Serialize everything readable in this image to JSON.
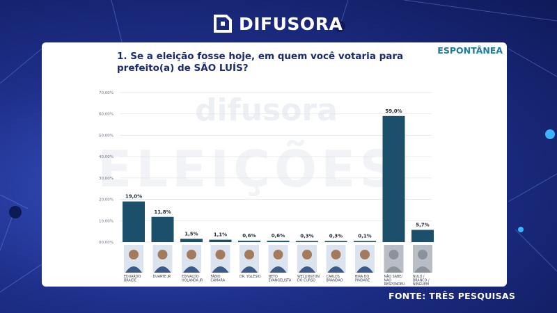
{
  "brand": {
    "logo_text": "DIFUSORA",
    "watermark": "difusora",
    "watermark_big": "ELEIÇÕES"
  },
  "header": {
    "title": "1. Se a eleição fosse hoje, em quem você votaria para prefeito(a) de SÃO LUÍS?",
    "tag": "ESPONTÂNEA"
  },
  "footer": {
    "source": "FONTE: TRÊS PESQUISAS"
  },
  "colors": {
    "bar": "#1b4f6a",
    "title": "#1a2a6c",
    "tag": "#1e7a9c"
  },
  "chart_data": {
    "type": "bar",
    "yticks": [
      "00,00%",
      "10,00%",
      "20,00%",
      "30,00%",
      "40,00%",
      "50,00%",
      "60,00%",
      "70,00%"
    ],
    "ylim": [
      0,
      70
    ],
    "categories": [
      "EDUARDO BRAIDE",
      "DUARTE JR",
      "EDIVALDO HOLANDA JR",
      "FÁBIO CÂMARA",
      "DR. YGLÉSIO",
      "NETO EVANGELISTA",
      "WELLINGTON DO CURSO",
      "CARLOS BRANDÃO",
      "BIRA DO PINDARÉ",
      "NÃO SABE/ NÃO RESPONDEU",
      "NULO / BRANCO / NINGUÉM"
    ],
    "values": [
      19.0,
      11.8,
      1.5,
      1.1,
      0.6,
      0.6,
      0.3,
      0.3,
      0.1,
      59.0,
      5.7
    ],
    "data_labels": [
      "19,0%",
      "11,8%",
      "1,5%",
      "1,1%",
      "0,6%",
      "0,6%",
      "0,3%",
      "0,3%",
      "0,1%",
      "59,0%",
      "5,7%"
    ]
  }
}
